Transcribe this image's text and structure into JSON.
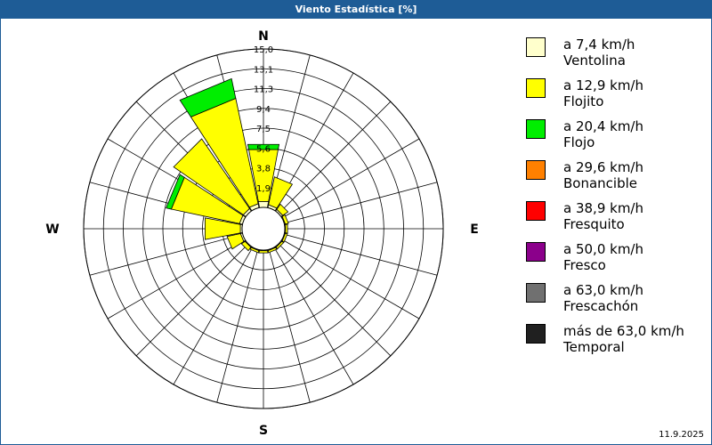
{
  "window": {
    "title": "Viento Estadística [%]"
  },
  "footer": {
    "date": "11.9.2025"
  },
  "legend": [
    {
      "label": "a 7,4 km/h\nVentolina",
      "color": "#ffffcc"
    },
    {
      "label": "a 12,9 km/h\nFlojito",
      "color": "#ffff00"
    },
    {
      "label": "a 20,4 km/h\nFlojo",
      "color": "#00ee00"
    },
    {
      "label": "a 29,6 km/h\nBonancible",
      "color": "#ff8000"
    },
    {
      "label": "a 38,9 km/h\nFresquito",
      "color": "#ff0000"
    },
    {
      "label": "a 50,0 km/h\nFresco",
      "color": "#8b008b"
    },
    {
      "label": "a 63,0 km/h\nFrescachón",
      "color": "#707070"
    },
    {
      "label": "más de 63,0 km/h\nTemporal",
      "color": "#202020"
    }
  ],
  "chart_data": {
    "type": "wind-rose",
    "title": "Viento Estadística [%]",
    "directions": [
      "N",
      "NNE",
      "NE",
      "ENE",
      "E",
      "ESE",
      "SE",
      "SSE",
      "S",
      "SSW",
      "SW",
      "WSW",
      "W",
      "WNW",
      "NW",
      "NNW"
    ],
    "direction_labels": {
      "north": "N",
      "east": "E",
      "south": "S",
      "west": "W"
    },
    "radial_max": 15.0,
    "radial_ticks": [
      "1,9",
      "3,8",
      "5,6",
      "7,5",
      "9,4",
      "11,3",
      "13,1",
      "15,0"
    ],
    "series": [
      {
        "name": "a 7,4 km/h Ventolina",
        "values": [
          0.6,
          0.3,
          0.2,
          0.1,
          0.1,
          0.1,
          0.1,
          0.1,
          0.1,
          0.1,
          0.1,
          0.2,
          0.2,
          0.3,
          0.3,
          0.4
        ]
      },
      {
        "name": "a 12,9 km/h Flojito",
        "values": [
          5.0,
          2.7,
          0.6,
          0.3,
          0.2,
          0.2,
          0.2,
          0.2,
          0.2,
          0.2,
          0.4,
          1.3,
          3.4,
          6.6,
          8.0,
          10.2
        ]
      },
      {
        "name": "a 20,4 km/h Flojo",
        "values": [
          0.5,
          0.0,
          0.0,
          0.0,
          0.0,
          0.0,
          0.0,
          0.0,
          0.0,
          0.0,
          0.0,
          0.0,
          0.0,
          0.5,
          0.0,
          1.9
        ]
      }
    ]
  }
}
